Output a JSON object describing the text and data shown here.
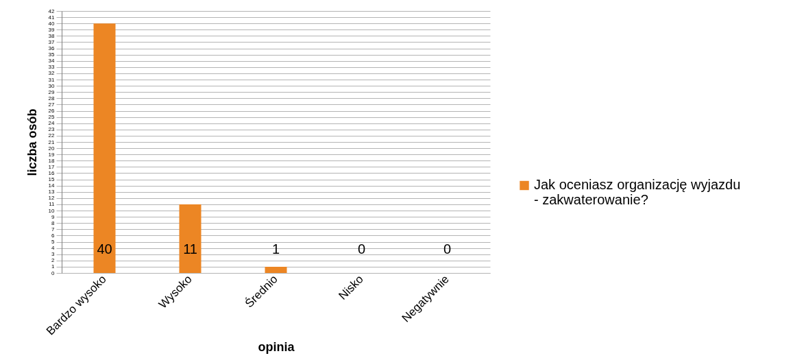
{
  "chart_data": {
    "type": "bar",
    "xlabel": "opinia",
    "ylabel": "liczba osób",
    "categories": [
      "Bardzo wysoko",
      "Wysoko",
      "Średnio",
      "Nisko",
      "Negatywnie"
    ],
    "series": [
      {
        "name": "Jak oceniasz organizację wyjazdu - zakwaterowanie?",
        "color": "#ec8624",
        "values": [
          40,
          11,
          1,
          0,
          0
        ]
      }
    ],
    "ylim": [
      0,
      42
    ],
    "yticks": [
      0,
      1,
      2,
      3,
      4,
      5,
      6,
      7,
      8,
      9,
      10,
      11,
      12,
      13,
      14,
      15,
      16,
      17,
      18,
      19,
      20,
      21,
      22,
      23,
      24,
      25,
      26,
      27,
      28,
      29,
      30,
      31,
      32,
      33,
      34,
      35,
      36,
      37,
      38,
      39,
      40,
      41,
      42
    ],
    "grid": "y",
    "legend": "right",
    "data_labels": true
  }
}
